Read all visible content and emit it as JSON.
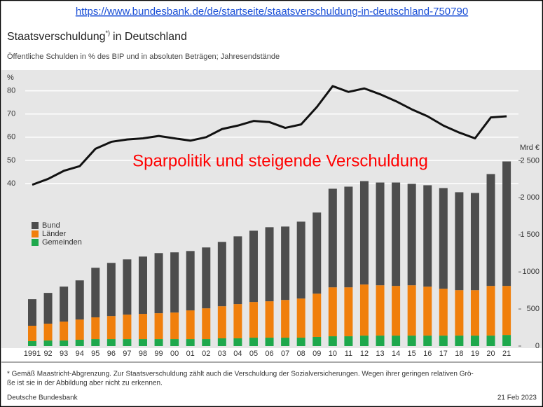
{
  "url": "https://www.bundesbank.de/de/startseite/staatsverschuldung-in-deutschland-750790",
  "chart_data": {
    "type": "bar_line",
    "title": "Staatsverschuldung",
    "title_note": "*)",
    "title_suffix": "in Deutschland",
    "subtitle": "Öffentliche Schulden in % des BIP und in absoluten Beträgen; Jahresendstände",
    "annotation": "Sparpolitik und steigende Verschuldung",
    "y_label": "%",
    "y2_label": "Mrd €",
    "categories": [
      "1991",
      "92",
      "93",
      "94",
      "95",
      "96",
      "97",
      "98",
      "99",
      "00",
      "01",
      "02",
      "03",
      "04",
      "05",
      "06",
      "07",
      "08",
      "09",
      "10",
      "11",
      "12",
      "13",
      "14",
      "15",
      "16",
      "17",
      "18",
      "19",
      "20",
      "21"
    ],
    "series": [
      {
        "name": "Gemeinden",
        "color": "#1ea84c",
        "axis": "y2",
        "values": [
          66,
          75,
          75,
          85,
          94,
          94,
          94,
          94,
          94,
          94,
          94,
          94,
          104,
          104,
          113,
          113,
          113,
          113,
          123,
          132,
          132,
          141,
          141,
          141,
          141,
          141,
          141,
          141,
          141,
          141,
          150
        ]
      },
      {
        "name": "Länder",
        "color": "#f07f0c",
        "axis": "y2",
        "values": [
          208,
          227,
          255,
          273,
          293,
          311,
          330,
          340,
          349,
          358,
          387,
          415,
          433,
          462,
          481,
          491,
          509,
          528,
          584,
          660,
          660,
          689,
          679,
          670,
          679,
          660,
          632,
          613,
          613,
          670,
          661
        ]
      },
      {
        "name": "Bund",
        "color": "#4d4d4d",
        "axis": "y2",
        "values": [
          358,
          415,
          472,
          528,
          669,
          717,
          745,
          773,
          811,
          812,
          801,
          821,
          868,
          914,
          962,
          999,
          990,
          1037,
          1094,
          1330,
          1358,
          1395,
          1386,
          1395,
          1368,
          1368,
          1358,
          1321,
          1311,
          1509,
          1679
        ]
      }
    ],
    "line": {
      "color": "#111111",
      "values": [
        39.5,
        42,
        45.5,
        47.5,
        55,
        58,
        59,
        59.5,
        60.5,
        59.5,
        58.5,
        60,
        63.5,
        65,
        67,
        66.5,
        64,
        65.5,
        73,
        82,
        79.5,
        81,
        78.5,
        75.5,
        72,
        69,
        65,
        62,
        59.5,
        68.5,
        69
      ]
    },
    "ylim": [
      -30,
      85
    ],
    "yticks": [
      40,
      50,
      60,
      70,
      80
    ],
    "y2lim": [
      0,
      3600
    ],
    "y2ticks": [
      0,
      500,
      1000,
      {
        "value": 1500,
        "label": "1 500"
      },
      {
        "value": 2000,
        "label": "2 000"
      },
      {
        "value": 2500,
        "label": "2 500"
      }
    ],
    "grid": true,
    "footnote": [
      "* Gemäß Maastricht-Abgrenzung. Zur Staatsverschuldung zählt auch die Verschuldung der Sozialversicherungen. Wegen ihrer geringen relativen Grö-",
      "ße ist sie in der Abbildung aber nicht zu erkennen."
    ],
    "source": "Deutsche Bundesbank",
    "date": "21 Feb 2023"
  }
}
